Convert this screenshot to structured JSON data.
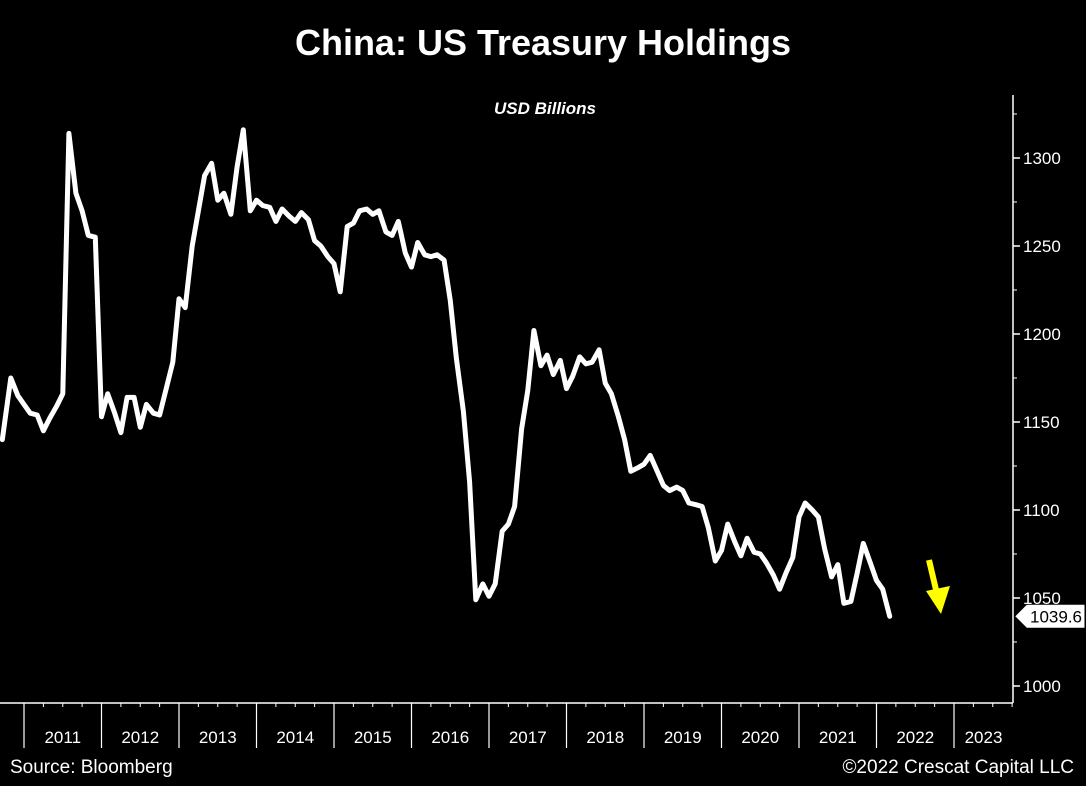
{
  "chart_data": {
    "type": "line",
    "title": "China: US Treasury Holdings",
    "subtitle": "USD Billions",
    "xlabel": "",
    "ylabel": "",
    "ylim": [
      1000,
      1330
    ],
    "y_ticks": [
      1000,
      1050,
      1100,
      1150,
      1200,
      1250,
      1300
    ],
    "x_range": [
      2011,
      2023
    ],
    "x_tick_labels": [
      "2011",
      "2012",
      "2013",
      "2014",
      "2015",
      "2016",
      "2017",
      "2018",
      "2019",
      "2020",
      "2021",
      "2022",
      "2023"
    ],
    "y_axis_position": "right",
    "grid": false,
    "last_value_label": "1039.6",
    "series": [
      {
        "color": "#ffffff",
        "x": [
          2010.72,
          2010.83,
          2010.92,
          2011.0,
          2011.08,
          2011.17,
          2011.25,
          2011.33,
          2011.42,
          2011.5,
          2011.58,
          2011.67,
          2011.75,
          2011.83,
          2011.92,
          2012.0,
          2012.08,
          2012.17,
          2012.25,
          2012.33,
          2012.42,
          2012.5,
          2012.58,
          2012.67,
          2012.75,
          2012.83,
          2012.92,
          2013.0,
          2013.08,
          2013.17,
          2013.25,
          2013.33,
          2013.42,
          2013.5,
          2013.58,
          2013.67,
          2013.75,
          2013.83,
          2013.92,
          2014.0,
          2014.08,
          2014.17,
          2014.25,
          2014.33,
          2014.42,
          2014.5,
          2014.58,
          2014.67,
          2014.75,
          2014.83,
          2014.92,
          2015.0,
          2015.08,
          2015.17,
          2015.25,
          2015.33,
          2015.42,
          2015.5,
          2015.58,
          2015.67,
          2015.75,
          2015.83,
          2015.92,
          2016.0,
          2016.08,
          2016.17,
          2016.25,
          2016.33,
          2016.42,
          2016.5,
          2016.58,
          2016.67,
          2016.75,
          2016.83,
          2016.92,
          2017.0,
          2017.08,
          2017.17,
          2017.25,
          2017.33,
          2017.42,
          2017.5,
          2017.58,
          2017.67,
          2017.75,
          2017.83,
          2017.92,
          2018.0,
          2018.08,
          2018.17,
          2018.25,
          2018.33,
          2018.42,
          2018.5,
          2018.58,
          2018.67,
          2018.75,
          2018.83,
          2018.92,
          2019.0,
          2019.08,
          2019.17,
          2019.25,
          2019.33,
          2019.42,
          2019.5,
          2019.58,
          2019.67,
          2019.75,
          2019.83,
          2019.92,
          2020.0,
          2020.08,
          2020.17,
          2020.25,
          2020.33,
          2020.42,
          2020.5,
          2020.58,
          2020.67,
          2020.75,
          2020.83,
          2020.92,
          2021.0,
          2021.08,
          2021.17,
          2021.25,
          2021.33,
          2021.42,
          2021.5,
          2021.58,
          2021.67,
          2021.75,
          2021.83,
          2021.92,
          2022.0,
          2022.08,
          2022.17
        ],
        "values": [
          1140,
          1175,
          1165,
          1160,
          1155,
          1154,
          1145,
          1152,
          1159,
          1166,
          1314,
          1280,
          1270,
          1256,
          1255,
          1153,
          1166,
          1155,
          1144,
          1164,
          1164,
          1147,
          1160,
          1155,
          1154,
          1168,
          1184,
          1220,
          1215,
          1250,
          1270,
          1290,
          1297,
          1276,
          1280,
          1268,
          1295,
          1316,
          1270,
          1276,
          1273,
          1272,
          1264,
          1271,
          1267,
          1264,
          1269,
          1265,
          1253,
          1250,
          1244,
          1240,
          1224,
          1261,
          1263,
          1270,
          1271,
          1268,
          1270,
          1258,
          1256,
          1264,
          1246,
          1238,
          1252,
          1245,
          1244,
          1245,
          1242,
          1219,
          1186,
          1156,
          1116,
          1049,
          1058,
          1051,
          1058,
          1088,
          1092,
          1102,
          1146,
          1168,
          1202,
          1182,
          1188,
          1177,
          1185,
          1169,
          1176,
          1187,
          1183,
          1184,
          1191,
          1172,
          1166,
          1153,
          1140,
          1122,
          1124,
          1126,
          1131,
          1122,
          1114,
          1111,
          1113,
          1111,
          1104,
          1103,
          1102,
          1090,
          1071,
          1077,
          1092,
          1082,
          1074,
          1084,
          1076,
          1075,
          1070,
          1063,
          1055,
          1064,
          1073,
          1096,
          1104,
          1100,
          1096,
          1078,
          1062,
          1069,
          1047,
          1048,
          1064,
          1081,
          1070,
          1060,
          1055,
          1039.6
        ]
      }
    ]
  },
  "footer": {
    "source": "Source: Bloomberg",
    "copyright": "©2022 Crescat Capital LLC"
  },
  "annotation": {
    "arrow_color": "#ffff00",
    "icon": "down-arrow-icon"
  }
}
